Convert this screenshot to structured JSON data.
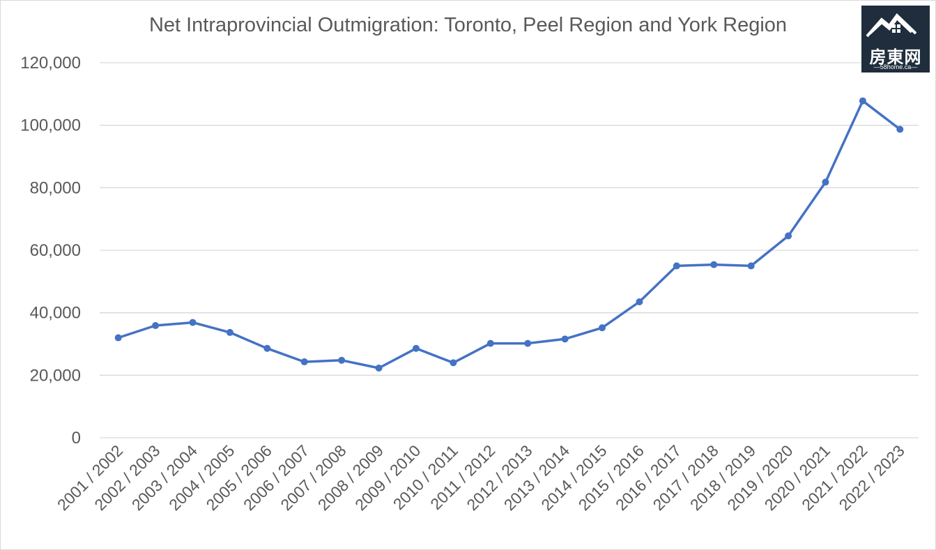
{
  "chart_data": {
    "type": "line",
    "title": "Net Intraprovincial Outmigration: Toronto, Peel Region and York Region",
    "xlabel": "",
    "ylabel": "",
    "ylim": [
      0,
      120000
    ],
    "y_ticks": [
      "0",
      "20,000",
      "40,000",
      "60,000",
      "80,000",
      "100,000",
      "120,000"
    ],
    "y_tick_values": [
      0,
      20000,
      40000,
      60000,
      80000,
      100000,
      120000
    ],
    "grid": true,
    "legend": "none",
    "series_color": "#4472c4",
    "categories": [
      "2001 / 2002",
      "2002 / 2003",
      "2003 / 2004",
      "2004 / 2005",
      "2005 / 2006",
      "2006 / 2007",
      "2007 / 2008",
      "2008 / 2009",
      "2009 / 2010",
      "2010 / 2011",
      "2011 / 2012",
      "2012 / 2013",
      "2013 / 2014",
      "2014 / 2015",
      "2015 / 2016",
      "2016 / 2017",
      "2017 / 2018",
      "2018 / 2019",
      "2019 / 2020",
      "2020 / 2021",
      "2021 / 2022",
      "2022 / 2023"
    ],
    "series": [
      {
        "values": [
          32000,
          35900,
          36900,
          33700,
          28600,
          24300,
          24800,
          22300,
          28600,
          24000,
          30200,
          30200,
          31600,
          35200,
          43500,
          55000,
          55400,
          55000,
          64600,
          81800,
          107800,
          98700
        ]
      }
    ]
  },
  "logo": {
    "main_text": "房東网",
    "sub_text": "—58home.ca—",
    "icon": "house-roof-icon"
  }
}
